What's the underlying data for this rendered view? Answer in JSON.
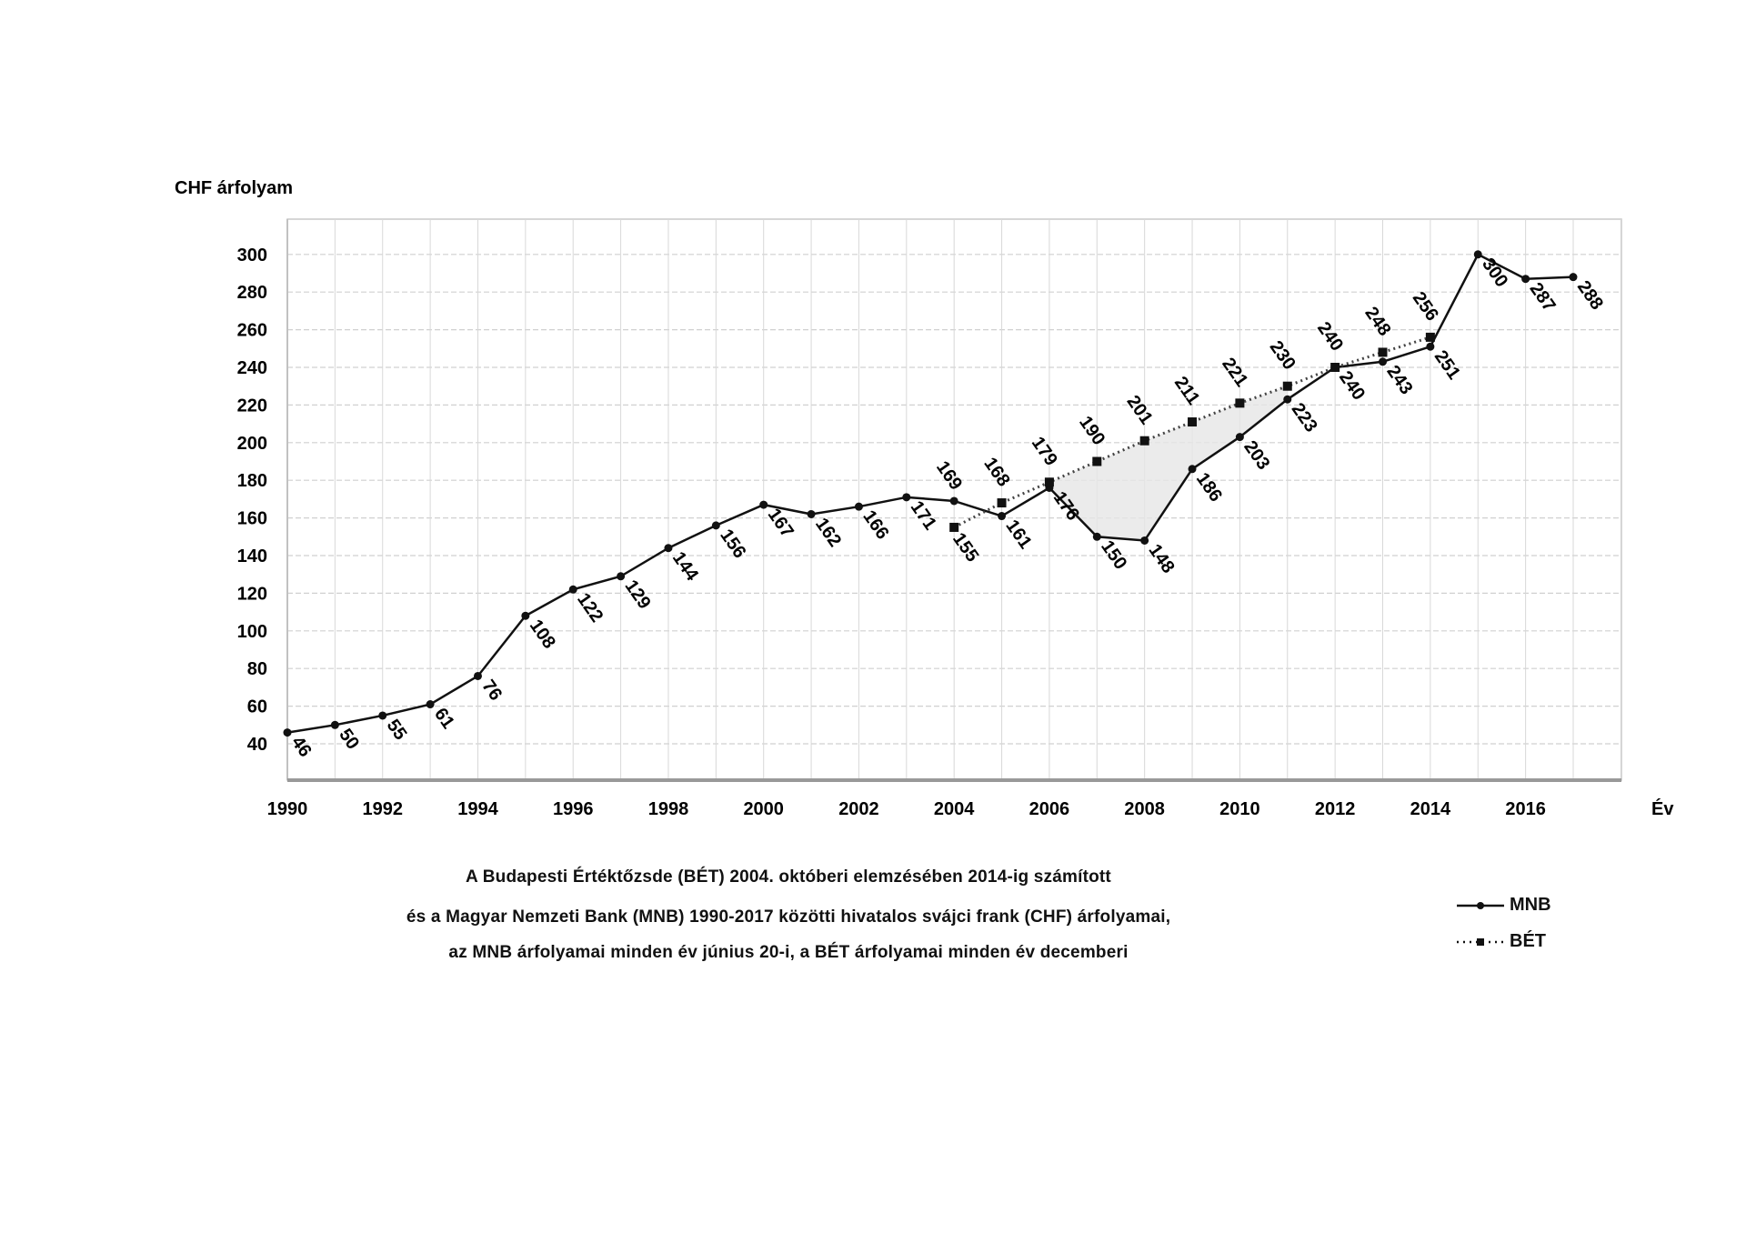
{
  "chart_data": {
    "type": "line",
    "ylabel": "CHF árfolyam",
    "xlabel": "Év",
    "xlim": [
      1990,
      2018
    ],
    "ylim": [
      40,
      300
    ],
    "yticks": [
      40,
      60,
      80,
      100,
      120,
      140,
      160,
      180,
      200,
      220,
      240,
      260,
      280,
      300
    ],
    "xticks": [
      1990,
      1992,
      1994,
      1996,
      1998,
      2000,
      2002,
      2004,
      2006,
      2008,
      2010,
      2012,
      2014,
      2016
    ],
    "grid": true,
    "legend_position": "bottom-right",
    "series": [
      {
        "name": "MNB",
        "style": "solid",
        "marker": "dot",
        "x": [
          1990,
          1991,
          1992,
          1993,
          1994,
          1995,
          1996,
          1997,
          1998,
          1999,
          2000,
          2001,
          2002,
          2003,
          2004,
          2005,
          2006,
          2007,
          2008,
          2009,
          2010,
          2011,
          2012,
          2013,
          2014,
          2015,
          2016,
          2017
        ],
        "values": [
          46,
          50,
          55,
          61,
          76,
          108,
          122,
          129,
          144,
          156,
          167,
          162,
          166,
          171,
          169,
          161,
          176,
          150,
          148,
          186,
          203,
          223,
          240,
          243,
          251,
          300,
          287,
          288
        ]
      },
      {
        "name": "BÉT",
        "style": "dotted",
        "marker": "square",
        "x": [
          2004,
          2005,
          2006,
          2007,
          2008,
          2009,
          2010,
          2011,
          2012,
          2013,
          2014
        ],
        "values": [
          155,
          168,
          179,
          190,
          201,
          211,
          221,
          230,
          240,
          248,
          256
        ]
      }
    ],
    "caption": [
      "A Budapesti Értéktőzsde (BÉT) 2004. októberi elemzésében 2014-ig számított",
      "és a Magyar Nemzeti Bank (MNB) 1990-2017 közötti hivatalos svájci frank (CHF) árfolyamai,",
      "az MNB árfolyamai minden év június 20-i, a BÉT árfolyamai minden év decemberi"
    ]
  }
}
